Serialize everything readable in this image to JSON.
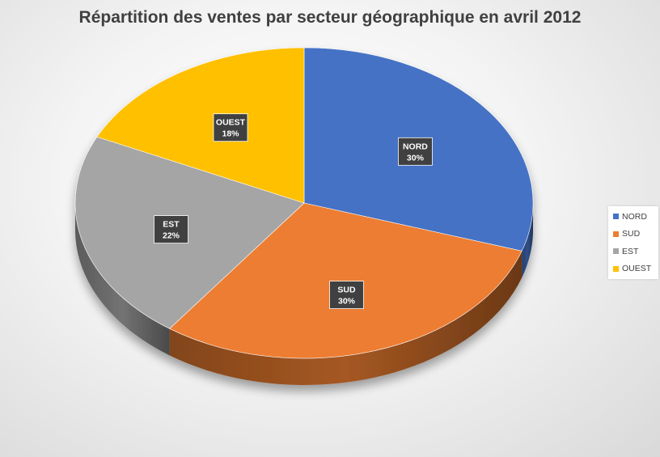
{
  "chart_data": {
    "type": "pie",
    "title": "Répartition des ventes par secteur géographique en avril 2012",
    "categories": [
      "NORD",
      "SUD",
      "EST",
      "OUEST"
    ],
    "values": [
      30,
      30,
      22,
      18
    ],
    "value_labels": [
      "30%",
      "30%",
      "22%",
      "18%"
    ],
    "colors": [
      "#4472C4",
      "#ED7D31",
      "#A5A5A5",
      "#FFC000"
    ],
    "legend_position": "right",
    "data_label_format": "category and percentage",
    "style": "3d"
  }
}
